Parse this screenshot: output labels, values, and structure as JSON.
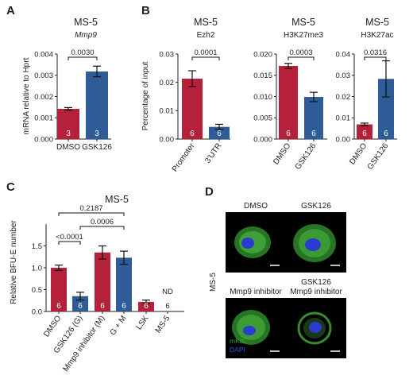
{
  "colors": {
    "red": "#b5213a",
    "blue": "#2f5c96",
    "axis": "#222222",
    "cell_green": "#3fa336",
    "nucleus_blue": "#2b3bd0"
  },
  "panels": {
    "A": "A",
    "B": "B",
    "C": "C",
    "D": "D"
  },
  "chart_data": [
    {
      "id": "A",
      "type": "bar",
      "title": "MS-5",
      "subtitle": "Mmp9",
      "ylabel": "mRNA relative to Hprt",
      "ylim": [
        0,
        0.004
      ],
      "yticks": [
        "0.000",
        "0.001",
        "0.002",
        "0.003",
        "0.004"
      ],
      "categories": [
        "DMSO",
        "GSK126"
      ],
      "values": [
        0.00142,
        0.00318
      ],
      "errors": [
        6e-05,
        0.00025
      ],
      "n": [
        "3",
        "3"
      ],
      "pvalues": [
        {
          "label": "0.0030",
          "from": 0,
          "to": 1
        }
      ]
    },
    {
      "id": "B1",
      "type": "bar",
      "title": "MS-5",
      "subtitle": "Ezh2",
      "ylabel": "Percentage of input",
      "ylim": [
        0,
        0.03
      ],
      "yticks": [
        "0.00",
        "0.01",
        "0.02",
        "0.03"
      ],
      "categories": [
        "Promoter",
        "3'UTR"
      ],
      "values": [
        0.0213,
        0.0043
      ],
      "errors": [
        0.0028,
        0.0009
      ],
      "n": [
        "6",
        "6"
      ],
      "pvalues": [
        {
          "label": "0.0001",
          "from": 0,
          "to": 1
        }
      ]
    },
    {
      "id": "B2",
      "type": "bar",
      "title": "MS-5",
      "subtitle": "H3K27me3",
      "ylabel": "",
      "ylim": [
        0,
        0.02
      ],
      "yticks": [
        "0.000",
        "0.005",
        "0.010",
        "0.015",
        "0.020"
      ],
      "categories": [
        "DMSO",
        "GSK126"
      ],
      "values": [
        0.0172,
        0.0099
      ],
      "errors": [
        0.0006,
        0.0011
      ],
      "n": [
        "6",
        "6"
      ],
      "pvalues": [
        {
          "label": "0.0003",
          "from": 0,
          "to": 1
        }
      ]
    },
    {
      "id": "B3",
      "type": "bar",
      "title": "MS-5",
      "subtitle": "H3K27ac",
      "ylabel": "",
      "ylim": [
        0,
        0.04
      ],
      "yticks": [
        "0.00",
        "0.01",
        "0.02",
        "0.03",
        "0.04"
      ],
      "categories": [
        "DMSO",
        "GSK126"
      ],
      "values": [
        0.0069,
        0.0283
      ],
      "errors": [
        0.0006,
        0.0085
      ],
      "n": [
        "6",
        "6"
      ],
      "pvalues": [
        {
          "label": "0.0316",
          "from": 0,
          "to": 1
        }
      ]
    },
    {
      "id": "C",
      "type": "bar",
      "title": "MS-5",
      "subtitle": "",
      "ylabel": "Relative BFU-E number",
      "ylim": [
        0,
        2.0
      ],
      "yticks": [
        "0.0",
        "0.5",
        "1.0",
        "1.5"
      ],
      "categories": [
        "DMSO",
        "GSK126 (G)",
        "Mmp9 inhibitor (M)",
        "G + M",
        "LSK",
        "MS-5"
      ],
      "values": [
        1.0,
        0.35,
        1.35,
        1.23,
        0.22,
        0
      ],
      "errors": [
        0.06,
        0.09,
        0.15,
        0.15,
        0.04,
        0
      ],
      "n": [
        "6",
        "6",
        "6",
        "6",
        "6",
        "6"
      ],
      "annotations": [
        "",
        "",
        "",
        "",
        "",
        "ND"
      ],
      "pvalues": [
        {
          "label": "<0.0001",
          "from": 0,
          "to": 1
        },
        {
          "label": "0.0006",
          "from": 1,
          "to": 3
        },
        {
          "label": "0.2187",
          "from": 0,
          "to": 3
        }
      ]
    }
  ],
  "microscopy": {
    "row_label": "MS-5",
    "images": [
      {
        "label": "DMSO",
        "label2": ""
      },
      {
        "label": "GSK126",
        "label2": ""
      },
      {
        "label": "Mmp9 inhibitor",
        "label2": ""
      },
      {
        "label": "GSK126",
        "label2": "Mmp9 inhibitor"
      }
    ],
    "legend_mkitl": "mKitL",
    "legend_dapi": "DAPI"
  }
}
